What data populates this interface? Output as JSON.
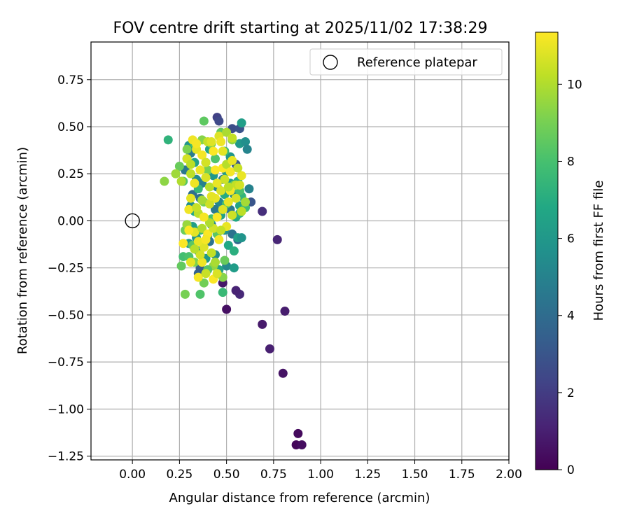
{
  "chart_data": {
    "type": "scatter",
    "title": "FOV centre drift starting at 2025/11/02 17:38:29",
    "xlabel": "Angular distance from reference (arcmin)",
    "ylabel": "Rotation from reference (arcmin)",
    "xlim": [
      -0.22,
      2.0
    ],
    "ylim": [
      -1.27,
      0.95
    ],
    "xticks": [
      0.0,
      0.25,
      0.5,
      0.75,
      1.0,
      1.25,
      1.5,
      1.75,
      2.0
    ],
    "xtick_labels": [
      "0.00",
      "0.25",
      "0.50",
      "0.75",
      "1.00",
      "1.25",
      "1.50",
      "1.75",
      "2.00"
    ],
    "yticks": [
      -1.25,
      -1.0,
      -0.75,
      -0.5,
      -0.25,
      0.0,
      0.25,
      0.5,
      0.75
    ],
    "ytick_labels": [
      "−1.25",
      "−1.00",
      "−0.75",
      "−0.50",
      "−0.25",
      "0.00",
      "0.25",
      "0.50",
      "0.75"
    ],
    "grid": true,
    "legend": {
      "position": "top-right",
      "entries": [
        "Reference platepar"
      ]
    },
    "reference_point": {
      "x": 0.0,
      "y": 0.0
    },
    "colorbar": {
      "label": "Hours from first FF file",
      "range": [
        0,
        11.35
      ],
      "ticks": [
        0,
        2,
        4,
        6,
        8,
        10
      ],
      "tick_labels": [
        "0",
        "2",
        "4",
        "6",
        "8",
        "10"
      ],
      "colormap": "viridis"
    },
    "points": [
      {
        "x": 0.88,
        "y": -1.13,
        "h": 0.3
      },
      {
        "x": 0.87,
        "y": -1.19,
        "h": 0.2
      },
      {
        "x": 0.9,
        "y": -1.19,
        "h": 0.4
      },
      {
        "x": 0.8,
        "y": -0.81,
        "h": 0.6
      },
      {
        "x": 0.73,
        "y": -0.68,
        "h": 1.0
      },
      {
        "x": 0.69,
        "y": -0.55,
        "h": 0.8
      },
      {
        "x": 0.81,
        "y": -0.48,
        "h": 0.9
      },
      {
        "x": 0.5,
        "y": -0.47,
        "h": 0.5
      },
      {
        "x": 0.57,
        "y": -0.39,
        "h": 1.3
      },
      {
        "x": 0.55,
        "y": -0.37,
        "h": 1.1
      },
      {
        "x": 0.48,
        "y": -0.33,
        "h": 0.7
      },
      {
        "x": 0.77,
        "y": -0.1,
        "h": 1.2
      },
      {
        "x": 0.69,
        "y": 0.05,
        "h": 1.5
      },
      {
        "x": 0.63,
        "y": 0.1,
        "h": 3.0
      },
      {
        "x": 0.45,
        "y": 0.55,
        "h": 2.2
      },
      {
        "x": 0.46,
        "y": 0.53,
        "h": 2.5
      },
      {
        "x": 0.53,
        "y": 0.49,
        "h": 2.7
      },
      {
        "x": 0.57,
        "y": 0.49,
        "h": 2.9
      },
      {
        "x": 0.35,
        "y": -0.28,
        "h": 3.6
      },
      {
        "x": 0.36,
        "y": -0.25,
        "h": 3.3
      },
      {
        "x": 0.55,
        "y": 0.3,
        "h": 3.1
      },
      {
        "x": 0.56,
        "y": -0.1,
        "h": 3.9
      },
      {
        "x": 0.53,
        "y": -0.07,
        "h": 4.3
      },
      {
        "x": 0.57,
        "y": 0.41,
        "h": 6.0
      },
      {
        "x": 0.58,
        "y": 0.52,
        "h": 6.3
      },
      {
        "x": 0.6,
        "y": 0.42,
        "h": 5.6
      },
      {
        "x": 0.61,
        "y": 0.38,
        "h": 5.1
      },
      {
        "x": 0.62,
        "y": 0.17,
        "h": 5.0
      },
      {
        "x": 0.5,
        "y": -0.24,
        "h": 5.3
      },
      {
        "x": 0.54,
        "y": -0.25,
        "h": 6.2
      },
      {
        "x": 0.56,
        "y": -0.09,
        "h": 6.4
      },
      {
        "x": 0.58,
        "y": -0.09,
        "h": 5.8
      },
      {
        "x": 0.57,
        "y": 0.08,
        "h": 6.6
      },
      {
        "x": 0.55,
        "y": 0.02,
        "h": 6.8
      },
      {
        "x": 0.54,
        "y": 0.14,
        "h": 5.4
      },
      {
        "x": 0.52,
        "y": 0.34,
        "h": 5.9
      },
      {
        "x": 0.5,
        "y": 0.26,
        "h": 6.1
      },
      {
        "x": 0.48,
        "y": 0.22,
        "h": 4.8
      },
      {
        "x": 0.46,
        "y": 0.1,
        "h": 5.2
      },
      {
        "x": 0.44,
        "y": 0.06,
        "h": 4.6
      },
      {
        "x": 0.42,
        "y": -0.02,
        "h": 4.9
      },
      {
        "x": 0.4,
        "y": -0.08,
        "h": 5.7
      },
      {
        "x": 0.38,
        "y": -0.12,
        "h": 4.4
      },
      {
        "x": 0.36,
        "y": 0.12,
        "h": 4.2
      },
      {
        "x": 0.34,
        "y": 0.22,
        "h": 5.5
      },
      {
        "x": 0.33,
        "y": 0.31,
        "h": 6.5
      },
      {
        "x": 0.31,
        "y": 0.36,
        "h": 4.7
      },
      {
        "x": 0.3,
        "y": 0.4,
        "h": 5.8
      },
      {
        "x": 0.29,
        "y": 0.33,
        "h": 6.9
      },
      {
        "x": 0.28,
        "y": 0.27,
        "h": 4.5
      },
      {
        "x": 0.32,
        "y": 0.14,
        "h": 4.1
      },
      {
        "x": 0.33,
        "y": 0.05,
        "h": 6.7
      },
      {
        "x": 0.32,
        "y": -0.03,
        "h": 6.3
      },
      {
        "x": 0.34,
        "y": -0.09,
        "h": 5.9
      },
      {
        "x": 0.35,
        "y": -0.16,
        "h": 6.2
      },
      {
        "x": 0.3,
        "y": -0.12,
        "h": 6.1
      },
      {
        "x": 0.29,
        "y": -0.02,
        "h": 5.3
      },
      {
        "x": 0.31,
        "y": 0.08,
        "h": 5.6
      },
      {
        "x": 0.37,
        "y": 0.2,
        "h": 4.9
      },
      {
        "x": 0.39,
        "y": 0.31,
        "h": 5.4
      },
      {
        "x": 0.41,
        "y": 0.38,
        "h": 6.6
      },
      {
        "x": 0.43,
        "y": 0.24,
        "h": 6.0
      },
      {
        "x": 0.45,
        "y": 0.18,
        "h": 5.1
      },
      {
        "x": 0.47,
        "y": 0.03,
        "h": 6.4
      },
      {
        "x": 0.49,
        "y": -0.05,
        "h": 5.7
      },
      {
        "x": 0.51,
        "y": -0.13,
        "h": 6.8
      },
      {
        "x": 0.52,
        "y": 0.06,
        "h": 4.6
      },
      {
        "x": 0.44,
        "y": -0.18,
        "h": 5.5
      },
      {
        "x": 0.46,
        "y": -0.26,
        "h": 6.5
      },
      {
        "x": 0.39,
        "y": -0.2,
        "h": 6.0
      },
      {
        "x": 0.41,
        "y": -0.11,
        "h": 4.3
      },
      {
        "x": 0.49,
        "y": 0.14,
        "h": 6.9
      },
      {
        "x": 0.52,
        "y": 0.2,
        "h": 6.2
      },
      {
        "x": 0.56,
        "y": 0.21,
        "h": 7.0
      },
      {
        "x": 0.58,
        "y": 0.13,
        "h": 7.4
      },
      {
        "x": 0.6,
        "y": 0.07,
        "h": 7.8
      },
      {
        "x": 0.54,
        "y": -0.16,
        "h": 7.1
      },
      {
        "x": 0.48,
        "y": -0.38,
        "h": 7.6
      },
      {
        "x": 0.19,
        "y": 0.43,
        "h": 7.3
      },
      {
        "x": 0.36,
        "y": -0.39,
        "h": 8.2
      },
      {
        "x": 0.38,
        "y": -0.33,
        "h": 8.9
      },
      {
        "x": 0.28,
        "y": -0.39,
        "h": 9.0
      },
      {
        "x": 0.26,
        "y": -0.24,
        "h": 8.6
      },
      {
        "x": 0.27,
        "y": -0.19,
        "h": 7.9
      },
      {
        "x": 0.3,
        "y": -0.19,
        "h": 8.1
      },
      {
        "x": 0.32,
        "y": -0.13,
        "h": 8.4
      },
      {
        "x": 0.28,
        "y": -0.05,
        "h": 8.8
      },
      {
        "x": 0.27,
        "y": 0.21,
        "h": 8.3
      },
      {
        "x": 0.25,
        "y": 0.29,
        "h": 8.7
      },
      {
        "x": 0.29,
        "y": 0.38,
        "h": 9.1
      },
      {
        "x": 0.33,
        "y": 0.41,
        "h": 8.0
      },
      {
        "x": 0.37,
        "y": 0.43,
        "h": 9.3
      },
      {
        "x": 0.38,
        "y": 0.53,
        "h": 8.5
      },
      {
        "x": 0.42,
        "y": 0.41,
        "h": 9.2
      },
      {
        "x": 0.47,
        "y": 0.47,
        "h": 8.6
      },
      {
        "x": 0.53,
        "y": 0.43,
        "h": 9.4
      },
      {
        "x": 0.49,
        "y": 0.37,
        "h": 7.7
      },
      {
        "x": 0.44,
        "y": 0.33,
        "h": 8.2
      },
      {
        "x": 0.4,
        "y": 0.27,
        "h": 9.0
      },
      {
        "x": 0.35,
        "y": 0.17,
        "h": 7.5
      },
      {
        "x": 0.38,
        "y": 0.1,
        "h": 8.9
      },
      {
        "x": 0.42,
        "y": 0.01,
        "h": 7.9
      },
      {
        "x": 0.45,
        "y": -0.07,
        "h": 8.4
      },
      {
        "x": 0.49,
        "y": -0.21,
        "h": 8.7
      },
      {
        "x": 0.48,
        "y": -0.3,
        "h": 9.3
      },
      {
        "x": 0.43,
        "y": -0.24,
        "h": 9.5
      },
      {
        "x": 0.4,
        "y": -0.26,
        "h": 8.3
      },
      {
        "x": 0.33,
        "y": -0.22,
        "h": 9.1
      },
      {
        "x": 0.36,
        "y": -0.05,
        "h": 7.6
      },
      {
        "x": 0.5,
        "y": 0.09,
        "h": 8.0
      },
      {
        "x": 0.54,
        "y": 0.19,
        "h": 8.8
      },
      {
        "x": 0.57,
        "y": 0.04,
        "h": 7.2
      },
      {
        "x": 0.57,
        "y": 0.16,
        "h": 8.1
      },
      {
        "x": 0.17,
        "y": 0.21,
        "h": 9.4
      },
      {
        "x": 0.23,
        "y": 0.25,
        "h": 9.7
      },
      {
        "x": 0.26,
        "y": 0.21,
        "h": 10.0
      },
      {
        "x": 0.31,
        "y": 0.25,
        "h": 10.2
      },
      {
        "x": 0.29,
        "y": 0.33,
        "h": 10.6
      },
      {
        "x": 0.32,
        "y": 0.43,
        "h": 11.1
      },
      {
        "x": 0.34,
        "y": 0.38,
        "h": 10.9
      },
      {
        "x": 0.37,
        "y": 0.35,
        "h": 11.2
      },
      {
        "x": 0.4,
        "y": 0.42,
        "h": 10.4
      },
      {
        "x": 0.46,
        "y": 0.45,
        "h": 10.8
      },
      {
        "x": 0.5,
        "y": 0.47,
        "h": 9.9
      },
      {
        "x": 0.48,
        "y": 0.28,
        "h": 11.3
      },
      {
        "x": 0.5,
        "y": 0.3,
        "h": 10.1
      },
      {
        "x": 0.58,
        "y": 0.24,
        "h": 11.0
      },
      {
        "x": 0.55,
        "y": 0.19,
        "h": 10.3
      },
      {
        "x": 0.52,
        "y": 0.16,
        "h": 11.2
      },
      {
        "x": 0.47,
        "y": 0.16,
        "h": 10.7
      },
      {
        "x": 0.44,
        "y": 0.12,
        "h": 11.0
      },
      {
        "x": 0.41,
        "y": 0.09,
        "h": 10.5
      },
      {
        "x": 0.37,
        "y": 0.11,
        "h": 9.8
      },
      {
        "x": 0.35,
        "y": 0.04,
        "h": 10.2
      },
      {
        "x": 0.3,
        "y": 0.06,
        "h": 11.1
      },
      {
        "x": 0.29,
        "y": -0.02,
        "h": 9.6
      },
      {
        "x": 0.33,
        "y": -0.06,
        "h": 10.9
      },
      {
        "x": 0.37,
        "y": -0.04,
        "h": 10.0
      },
      {
        "x": 0.4,
        "y": -0.07,
        "h": 11.3
      },
      {
        "x": 0.43,
        "y": -0.04,
        "h": 10.6
      },
      {
        "x": 0.46,
        "y": -0.1,
        "h": 11.2
      },
      {
        "x": 0.42,
        "y": -0.17,
        "h": 10.3
      },
      {
        "x": 0.38,
        "y": -0.14,
        "h": 10.8
      },
      {
        "x": 0.35,
        "y": -0.11,
        "h": 11.0
      },
      {
        "x": 0.27,
        "y": -0.12,
        "h": 11.3
      },
      {
        "x": 0.31,
        "y": -0.22,
        "h": 10.9
      },
      {
        "x": 0.37,
        "y": -0.22,
        "h": 11.1
      },
      {
        "x": 0.35,
        "y": -0.3,
        "h": 11.2
      },
      {
        "x": 0.43,
        "y": -0.31,
        "h": 11.3
      },
      {
        "x": 0.45,
        "y": -0.28,
        "h": 10.7
      },
      {
        "x": 0.39,
        "y": -0.28,
        "h": 10.4
      },
      {
        "x": 0.44,
        "y": -0.22,
        "h": 9.9
      },
      {
        "x": 0.41,
        "y": 0.18,
        "h": 10.1
      },
      {
        "x": 0.45,
        "y": 0.2,
        "h": 11.0
      },
      {
        "x": 0.49,
        "y": 0.22,
        "h": 10.5
      },
      {
        "x": 0.52,
        "y": 0.26,
        "h": 11.2
      },
      {
        "x": 0.48,
        "y": 0.37,
        "h": 10.9
      },
      {
        "x": 0.43,
        "y": 0.37,
        "h": 11.3
      },
      {
        "x": 0.39,
        "y": 0.31,
        "h": 10.6
      },
      {
        "x": 0.36,
        "y": 0.27,
        "h": 11.1
      },
      {
        "x": 0.31,
        "y": 0.3,
        "h": 10.2
      },
      {
        "x": 0.34,
        "y": 0.41,
        "h": 11.2
      },
      {
        "x": 0.42,
        "y": 0.42,
        "h": 10.8
      },
      {
        "x": 0.47,
        "y": 0.42,
        "h": 11.1
      },
      {
        "x": 0.53,
        "y": 0.44,
        "h": 10.3
      },
      {
        "x": 0.57,
        "y": 0.19,
        "h": 10.6
      },
      {
        "x": 0.51,
        "y": 0.1,
        "h": 11.0
      },
      {
        "x": 0.48,
        "y": 0.06,
        "h": 10.8
      },
      {
        "x": 0.45,
        "y": 0.02,
        "h": 11.3
      },
      {
        "x": 0.41,
        "y": -0.01,
        "h": 10.0
      },
      {
        "x": 0.38,
        "y": 0.02,
        "h": 11.2
      },
      {
        "x": 0.34,
        "y": 0.07,
        "h": 10.4
      },
      {
        "x": 0.31,
        "y": 0.12,
        "h": 10.9
      },
      {
        "x": 0.33,
        "y": 0.2,
        "h": 11.1
      },
      {
        "x": 0.39,
        "y": 0.23,
        "h": 10.7
      },
      {
        "x": 0.44,
        "y": 0.27,
        "h": 11.3
      },
      {
        "x": 0.51,
        "y": 0.18,
        "h": 10.2
      },
      {
        "x": 0.53,
        "y": 0.03,
        "h": 10.5
      },
      {
        "x": 0.5,
        "y": -0.03,
        "h": 11.0
      },
      {
        "x": 0.47,
        "y": -0.05,
        "h": 10.3
      },
      {
        "x": 0.39,
        "y": -0.1,
        "h": 11.2
      },
      {
        "x": 0.36,
        "y": -0.18,
        "h": 10.6
      },
      {
        "x": 0.33,
        "y": -0.15,
        "h": 10.1
      },
      {
        "x": 0.3,
        "y": -0.05,
        "h": 11.3
      },
      {
        "x": 0.42,
        "y": 0.13,
        "h": 10.9
      },
      {
        "x": 0.55,
        "y": 0.12,
        "h": 10.7
      },
      {
        "x": 0.53,
        "y": 0.32,
        "h": 11.0
      },
      {
        "x": 0.6,
        "y": 0.1,
        "h": 9.8
      },
      {
        "x": 0.58,
        "y": 0.05,
        "h": 10.2
      },
      {
        "x": 0.56,
        "y": 0.28,
        "h": 10.4
      }
    ]
  }
}
